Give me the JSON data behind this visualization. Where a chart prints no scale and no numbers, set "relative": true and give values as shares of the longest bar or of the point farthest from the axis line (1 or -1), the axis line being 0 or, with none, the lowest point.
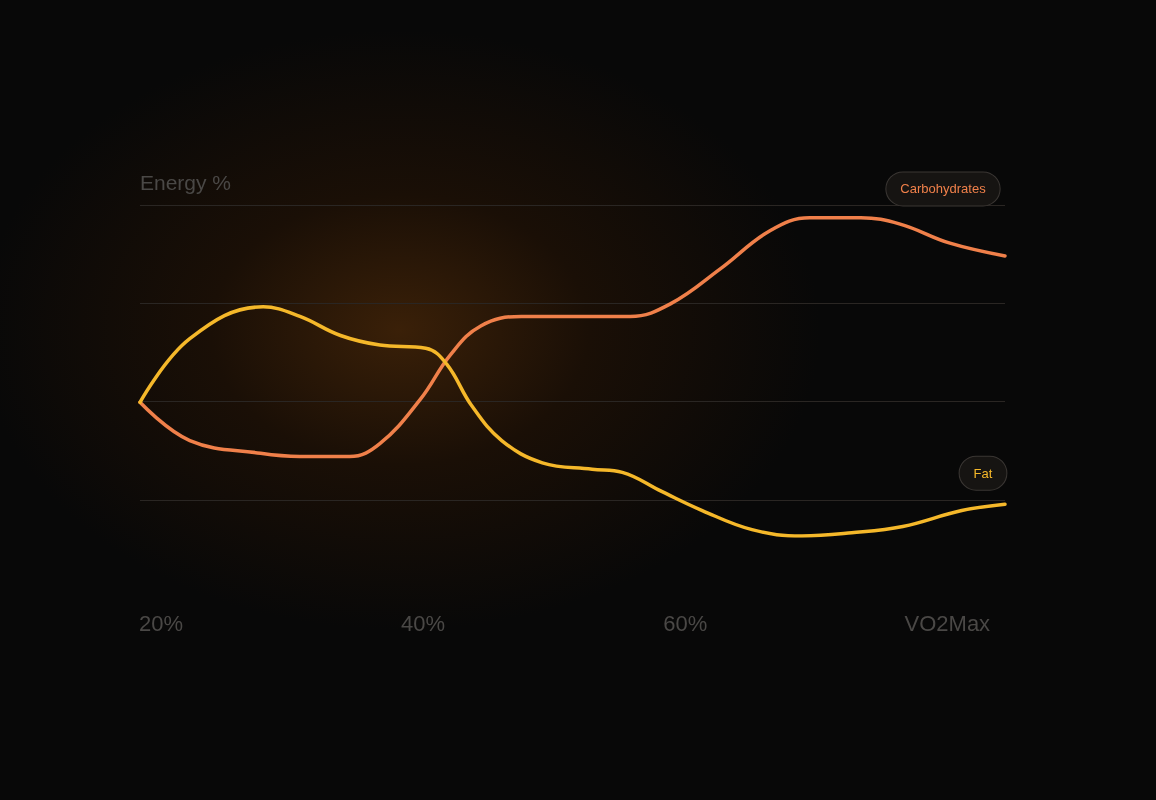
{
  "chart_data": {
    "type": "line",
    "ylabel": "Energy %",
    "relative": true,
    "grid": "y",
    "marker": "none",
    "line_style": "solid",
    "xlim": [
      18.4,
      84.4
    ],
    "xticks": [
      {
        "value": 20,
        "label": "20%"
      },
      {
        "value": 40,
        "label": "40%"
      },
      {
        "value": 60,
        "label": "60%"
      },
      {
        "value": 80,
        "label": "VO2Max"
      }
    ],
    "series": [
      {
        "name": "Carbohydrates",
        "color": "#f0804a",
        "x": [
          18.4,
          22.2,
          27.6,
          30.6,
          34.4,
          36.7,
          39.8,
          42.1,
          44.4,
          47.5,
          52.0,
          55.8,
          58.9,
          62.7,
          66.5,
          69.5,
          73.4,
          76.4,
          80.2,
          84.4
        ],
        "values": [
          0.42,
          0.3,
          0.26,
          0.25,
          0.25,
          0.29,
          0.43,
          0.57,
          0.66,
          0.69,
          0.69,
          0.69,
          0.73,
          0.84,
          0.96,
          1,
          1,
          0.98,
          0.92,
          0.88
        ]
      },
      {
        "name": "Fat",
        "color": "#f5b82a",
        "x": [
          18.4,
          22.2,
          27.8,
          30.6,
          33.7,
          36.7,
          40.2,
          41.8,
          43.7,
          46.0,
          49.1,
          52.9,
          55.2,
          58.2,
          61.3,
          65.1,
          68.9,
          72.7,
          76.6,
          81.1,
          84.4
        ],
        "values": [
          0.42,
          0.62,
          0.72,
          0.69,
          0.63,
          0.6,
          0.59,
          0.54,
          0.41,
          0.3,
          0.23,
          0.21,
          0.2,
          0.14,
          0.08,
          0.02,
          0,
          0.01,
          0.03,
          0.08,
          0.1
        ]
      }
    ]
  }
}
